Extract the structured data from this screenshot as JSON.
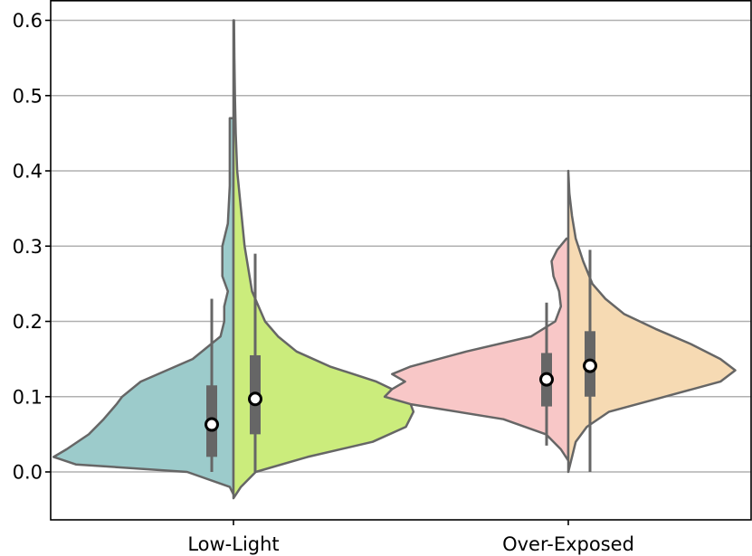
{
  "chart_data": {
    "type": "split-violin",
    "title": "",
    "xlabel": "",
    "ylabel": "",
    "categories": [
      "Low-Light",
      "Over-Exposed"
    ],
    "ylim": [
      -0.065,
      0.62
    ],
    "yticks": [
      0.0,
      0.1,
      0.2,
      0.3,
      0.4,
      0.5,
      0.6
    ],
    "ytick_labels": [
      "0.0",
      "0.1",
      "0.2",
      "0.3",
      "0.4",
      "0.5",
      "0.6"
    ],
    "grid": "horizontal",
    "violins": [
      {
        "category": "Low-Light",
        "side": "left",
        "color": "#9ccbcb",
        "min": 0.0,
        "max": 0.23,
        "q1": 0.02,
        "q3": 0.115,
        "median": 0.063,
        "density": [
          [
            -0.03,
            0.0
          ],
          [
            -0.02,
            0.02
          ],
          [
            0.0,
            0.25
          ],
          [
            0.01,
            0.85
          ],
          [
            0.02,
            0.97
          ],
          [
            0.03,
            0.9
          ],
          [
            0.05,
            0.78
          ],
          [
            0.07,
            0.7
          ],
          [
            0.09,
            0.63
          ],
          [
            0.1,
            0.6
          ],
          [
            0.12,
            0.5
          ],
          [
            0.15,
            0.22
          ],
          [
            0.18,
            0.07
          ],
          [
            0.2,
            0.05
          ],
          [
            0.22,
            0.05
          ],
          [
            0.24,
            0.03
          ],
          [
            0.26,
            0.06
          ],
          [
            0.3,
            0.06
          ],
          [
            0.33,
            0.03
          ],
          [
            0.38,
            0.02
          ],
          [
            0.43,
            0.02
          ],
          [
            0.47,
            0.02
          ]
        ]
      },
      {
        "category": "Low-Light",
        "side": "right",
        "color": "#cbec7c",
        "min": 0.0,
        "max": 0.29,
        "q1": 0.05,
        "q3": 0.155,
        "median": 0.097,
        "density": [
          [
            -0.035,
            0.0
          ],
          [
            -0.02,
            0.04
          ],
          [
            0.0,
            0.12
          ],
          [
            0.02,
            0.4
          ],
          [
            0.04,
            0.75
          ],
          [
            0.06,
            0.93
          ],
          [
            0.08,
            0.97
          ],
          [
            0.1,
            0.94
          ],
          [
            0.12,
            0.77
          ],
          [
            0.14,
            0.52
          ],
          [
            0.16,
            0.34
          ],
          [
            0.18,
            0.24
          ],
          [
            0.2,
            0.17
          ],
          [
            0.24,
            0.1
          ],
          [
            0.3,
            0.06
          ],
          [
            0.35,
            0.04
          ],
          [
            0.4,
            0.02
          ],
          [
            0.45,
            0.012
          ],
          [
            0.5,
            0.008
          ],
          [
            0.55,
            0.005
          ],
          [
            0.6,
            0.003
          ]
        ]
      },
      {
        "category": "Over-Exposed",
        "side": "left",
        "color": "#f8c7c7",
        "min": 0.035,
        "max": 0.225,
        "q1": 0.087,
        "q3": 0.158,
        "median": 0.123,
        "density": [
          [
            0.015,
            0.0
          ],
          [
            0.03,
            0.04
          ],
          [
            0.05,
            0.12
          ],
          [
            0.07,
            0.35
          ],
          [
            0.09,
            0.85
          ],
          [
            0.1,
            0.99
          ],
          [
            0.11,
            0.95
          ],
          [
            0.12,
            0.88
          ],
          [
            0.13,
            0.95
          ],
          [
            0.14,
            0.85
          ],
          [
            0.16,
            0.55
          ],
          [
            0.18,
            0.2
          ],
          [
            0.2,
            0.07
          ],
          [
            0.22,
            0.04
          ],
          [
            0.24,
            0.05
          ],
          [
            0.26,
            0.08
          ],
          [
            0.28,
            0.09
          ],
          [
            0.295,
            0.06
          ],
          [
            0.31,
            0.01
          ]
        ]
      },
      {
        "category": "Over-Exposed",
        "side": "right",
        "color": "#f6dab3",
        "min": 0.0,
        "max": 0.295,
        "q1": 0.1,
        "q3": 0.187,
        "median": 0.141,
        "density": [
          [
            0.0,
            0.0
          ],
          [
            0.02,
            0.02
          ],
          [
            0.04,
            0.04
          ],
          [
            0.06,
            0.1
          ],
          [
            0.08,
            0.22
          ],
          [
            0.1,
            0.52
          ],
          [
            0.12,
            0.82
          ],
          [
            0.135,
            0.9
          ],
          [
            0.15,
            0.82
          ],
          [
            0.17,
            0.66
          ],
          [
            0.19,
            0.47
          ],
          [
            0.21,
            0.3
          ],
          [
            0.23,
            0.2
          ],
          [
            0.25,
            0.13
          ],
          [
            0.28,
            0.08
          ],
          [
            0.31,
            0.04
          ],
          [
            0.34,
            0.02
          ],
          [
            0.37,
            0.006
          ],
          [
            0.4,
            0.0
          ]
        ]
      }
    ]
  }
}
